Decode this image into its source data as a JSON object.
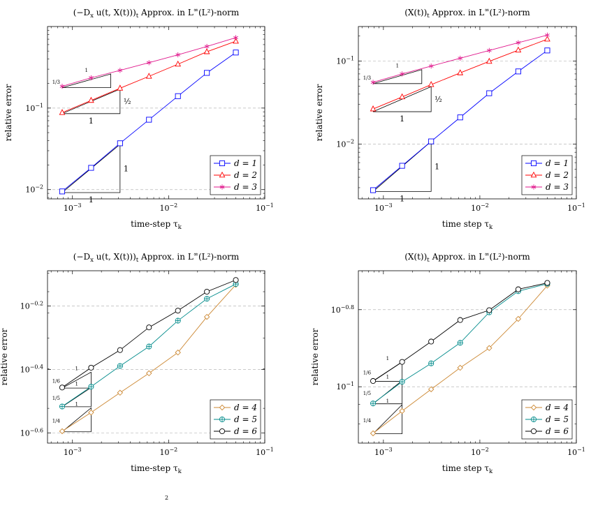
{
  "caption": "2",
  "chart_data": [
    {
      "type": "line",
      "title": "(−D_x u(t, X(t)))_t Approx. in L^∞(L²)-norm",
      "xlabel": "time-step τ_k",
      "ylabel": "relative error",
      "xscale": "log",
      "yscale": "log",
      "xlim": [
        0.00055,
        0.1
      ],
      "ylim": [
        0.0077,
        1.0
      ],
      "xticks": [
        {
          "v": 0.001,
          "label": "10^−3"
        },
        {
          "v": 0.01,
          "label": "10^−2"
        },
        {
          "v": 0.1,
          "label": "10^−1"
        }
      ],
      "yticks": [
        {
          "v": 0.01,
          "label": "10^−2"
        },
        {
          "v": 0.1,
          "label": "10^−1"
        }
      ],
      "grid": "dashed horizontal at major y ticks",
      "legend_position": "bottom-right",
      "x": [
        0.00078125,
        0.0015625,
        0.003125,
        0.00625,
        0.0125,
        0.025,
        0.05
      ],
      "series": [
        {
          "name": "d = 1",
          "color": "#0000ff",
          "marker": "square",
          "values": [
            0.0095,
            0.0185,
            0.037,
            0.072,
            0.14,
            0.27,
            0.48
          ]
        },
        {
          "name": "d = 2",
          "color": "#ff0000",
          "marker": "triangle",
          "values": [
            0.088,
            0.124,
            0.175,
            0.245,
            0.345,
            0.49,
            0.66
          ]
        },
        {
          "name": "d = 3",
          "color": "#e0188c",
          "marker": "star",
          "values": [
            0.185,
            0.235,
            0.29,
            0.36,
            0.45,
            0.57,
            0.73
          ]
        }
      ],
      "slope_triangles": [
        {
          "x0": 0.00078125,
          "x1": 0.003125,
          "y0": 0.0092,
          "y1": 0.0359,
          "label_run": "1",
          "label_rise": "1",
          "small": false
        },
        {
          "x0": 0.00078125,
          "x1": 0.003125,
          "y0": 0.0855,
          "y1": 0.171,
          "label_run": "1",
          "label_rise": "½",
          "small": false
        },
        {
          "x0": 0.00078125,
          "x1": 0.0025,
          "y0": 0.178,
          "y1": 0.262,
          "label_run": "1",
          "label_rise": "1/3",
          "small": true
        }
      ]
    },
    {
      "type": "line",
      "title": "(X(t))_t Approx. in L^∞(L²)-norm",
      "xlabel": "time step τ_k",
      "ylabel": "relative error",
      "xscale": "log",
      "yscale": "log",
      "xlim": [
        0.00055,
        0.1
      ],
      "ylim": [
        0.0022,
        0.26
      ],
      "xticks": [
        {
          "v": 0.001,
          "label": "10^−3"
        },
        {
          "v": 0.01,
          "label": "10^−2"
        },
        {
          "v": 0.1,
          "label": "10^−1"
        }
      ],
      "yticks": [
        {
          "v": 0.01,
          "label": "10^−2"
        },
        {
          "v": 0.1,
          "label": "10^−1"
        }
      ],
      "grid": "dashed horizontal at major y ticks",
      "legend_position": "bottom-right",
      "x": [
        0.00078125,
        0.0015625,
        0.003125,
        0.00625,
        0.0125,
        0.025,
        0.05
      ],
      "series": [
        {
          "name": "d = 1",
          "color": "#0000ff",
          "marker": "square",
          "values": [
            0.0028,
            0.0055,
            0.0108,
            0.021,
            0.041,
            0.075,
            0.134
          ]
        },
        {
          "name": "d = 2",
          "color": "#ff0000",
          "marker": "triangle",
          "values": [
            0.0265,
            0.037,
            0.052,
            0.072,
            0.099,
            0.135,
            0.183
          ]
        },
        {
          "name": "d = 3",
          "color": "#e0188c",
          "marker": "star",
          "values": [
            0.0555,
            0.07,
            0.087,
            0.108,
            0.134,
            0.166,
            0.205
          ]
        }
      ],
      "slope_triangles": [
        {
          "x0": 0.00078125,
          "x1": 0.003125,
          "y0": 0.0027,
          "y1": 0.0108,
          "label_run": "1",
          "label_rise": "1",
          "small": false
        },
        {
          "x0": 0.00078125,
          "x1": 0.003125,
          "y0": 0.0246,
          "y1": 0.0492,
          "label_run": "1",
          "label_rise": "½",
          "small": false
        },
        {
          "x0": 0.00078125,
          "x1": 0.0025,
          "y0": 0.0535,
          "y1": 0.0789,
          "label_run": "1",
          "label_rise": "1/3",
          "small": true
        }
      ]
    },
    {
      "type": "line",
      "title": "(−D_x u(t, X(t)))_t Approx. in L^∞(L²)-norm",
      "xlabel": "time-step τ_k",
      "ylabel": "relative error",
      "xscale": "log",
      "yscale": "log",
      "xlim": [
        0.00055,
        0.1
      ],
      "ylim": [
        0.233,
        0.815
      ],
      "xticks": [
        {
          "v": 0.001,
          "label": "10^−3"
        },
        {
          "v": 0.01,
          "label": "10^−2"
        },
        {
          "v": 0.1,
          "label": "10^−1"
        }
      ],
      "yticks": [
        {
          "v": 0.631,
          "label": "10^−0.2"
        },
        {
          "v": 0.398,
          "label": "10^−0.4"
        },
        {
          "v": 0.251,
          "label": "10^−0.6"
        }
      ],
      "grid": "dashed horizontal at major y ticks",
      "legend_position": "bottom-right",
      "x": [
        0.00078125,
        0.0015625,
        0.003125,
        0.00625,
        0.0125,
        0.025,
        0.05
      ],
      "series": [
        {
          "name": "d = 4",
          "color": "#cc8833",
          "marker": "diamond",
          "values": [
            0.254,
            0.291,
            0.336,
            0.387,
            0.45,
            0.583,
            0.736
          ]
        },
        {
          "name": "d = 5",
          "color": "#008b8b",
          "marker": "oplus",
          "values": [
            0.304,
            0.351,
            0.408,
            0.47,
            0.567,
            0.665,
            0.74
          ]
        },
        {
          "name": "d = 6",
          "color": "#000000",
          "marker": "circle",
          "values": [
            0.349,
            0.403,
            0.458,
            0.54,
            0.61,
            0.7,
            0.762
          ]
        }
      ],
      "slope_triangles": [
        {
          "x0": 0.00078125,
          "x1": 0.0015625,
          "y0": 0.253,
          "y1": 0.3009,
          "label_run": "1",
          "label_rise": "1/4",
          "small": true
        },
        {
          "x0": 0.00078125,
          "x1": 0.0015625,
          "y0": 0.3035,
          "y1": 0.3487,
          "label_run": "1",
          "label_rise": "1/5",
          "small": true
        },
        {
          "x0": 0.00078125,
          "x1": 0.0015625,
          "y0": 0.3475,
          "y1": 0.3901,
          "label_run": "1",
          "label_rise": "1/6",
          "small": true
        }
      ]
    },
    {
      "type": "line",
      "title": "(X(t))_t Approx. in L^∞(L²)-norm",
      "xlabel": "time step τ_k",
      "ylabel": "relative error",
      "xscale": "log",
      "yscale": "log",
      "xlim": [
        0.00055,
        0.1
      ],
      "ylim": [
        0.0714,
        0.2
      ],
      "xticks": [
        {
          "v": 0.001,
          "label": "10^−3"
        },
        {
          "v": 0.01,
          "label": "10^−2"
        },
        {
          "v": 0.1,
          "label": "10^−1"
        }
      ],
      "yticks": [
        {
          "v": 0.1585,
          "label": "10^−0.8"
        },
        {
          "v": 0.1,
          "label": "10^−1"
        }
      ],
      "grid": "dashed horizontal at major y ticks",
      "legend_position": "bottom-right",
      "x": [
        0.00078125,
        0.0015625,
        0.003125,
        0.00625,
        0.0125,
        0.025,
        0.05
      ],
      "series": [
        {
          "name": "d = 4",
          "color": "#cc8833",
          "marker": "diamond",
          "values": [
            0.0757,
            0.0865,
            0.0985,
            0.112,
            0.126,
            0.15,
            0.183
          ]
        },
        {
          "name": "d = 5",
          "color": "#008b8b",
          "marker": "oplus",
          "values": [
            0.0905,
            0.103,
            0.115,
            0.13,
            0.156,
            0.177,
            0.185
          ]
        },
        {
          "name": "d = 6",
          "color": "#000000",
          "marker": "circle",
          "values": [
            0.1035,
            0.116,
            0.131,
            0.149,
            0.158,
            0.179,
            0.186
          ]
        }
      ],
      "slope_triangles": [
        {
          "x0": 0.00078125,
          "x1": 0.0015625,
          "y0": 0.0755,
          "y1": 0.0898,
          "label_run": "1",
          "label_rise": "1/4",
          "small": true
        },
        {
          "x0": 0.00078125,
          "x1": 0.0015625,
          "y0": 0.0903,
          "y1": 0.1037,
          "label_run": "1",
          "label_rise": "1/5",
          "small": true
        },
        {
          "x0": 0.00078125,
          "x1": 0.0015625,
          "y0": 0.1033,
          "y1": 0.1159,
          "label_run": "1",
          "label_rise": "1/6",
          "small": true
        }
      ]
    }
  ]
}
